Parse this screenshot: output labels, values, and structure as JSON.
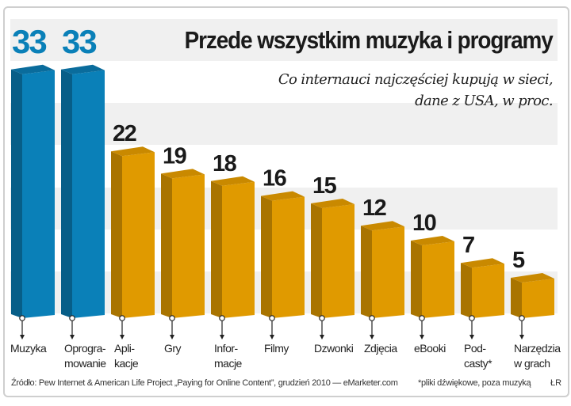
{
  "chart_data": {
    "type": "bar",
    "title": "Przede wszystkim muzyka i programy",
    "subtitle": [
      "Co internauci najczęściej kupują w sieci,",
      "dane z USA, w proc."
    ],
    "categories": [
      [
        "Muzyka"
      ],
      [
        "Oprogra-",
        "mowanie"
      ],
      [
        "Apli-",
        "kacje"
      ],
      [
        "Gry"
      ],
      [
        "Infor-",
        "macje"
      ],
      [
        "Filmy"
      ],
      [
        "Dzwonki"
      ],
      [
        "Zdjęcia"
      ],
      [
        "eBooki"
      ],
      [
        "Pod-",
        "casty*"
      ],
      [
        "Narzędzia",
        "w grach"
      ]
    ],
    "values": [
      33,
      33,
      22,
      19,
      18,
      16,
      15,
      12,
      10,
      7,
      5
    ],
    "highlight_count": 2,
    "colors": {
      "highlight": "#0a80b8",
      "highlight_side": "#075e88",
      "highlight_top": "#0a6c9c",
      "normal": "#e09a00",
      "normal_side": "#a97400",
      "normal_top": "#c98900",
      "label": "#1a1a1a"
    },
    "ylim": [
      0,
      33
    ],
    "grid": false,
    "source": "Źródło: Pew Internet & American Life Project „Paying for Online Content”, grudzień 2010 — eMarketer.com",
    "note": "*pliki dźwiękowe, poza muzyką",
    "signature": "ŁR"
  }
}
